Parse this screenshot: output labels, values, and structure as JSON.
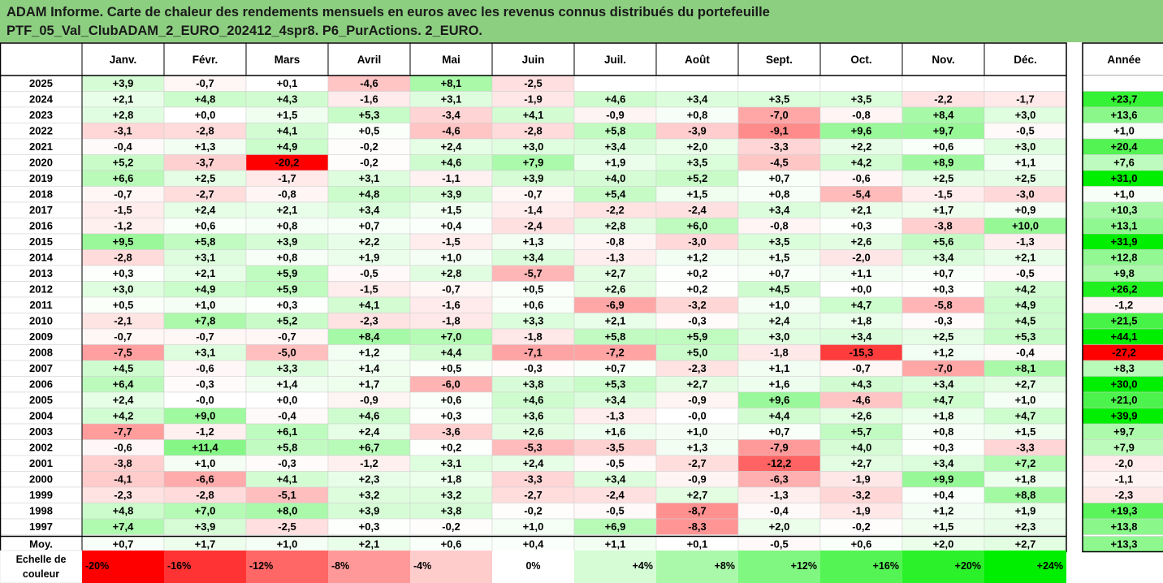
{
  "title": {
    "line1": "ADAM Informe. Carte de chaleur des rendements mensuels en euros avec les revenus connus distribués du portefeuille",
    "line2": "PTF_05_Val_ClubADAM_2_EURO_202412_4spr8. P6_PurActions. 2_EURO."
  },
  "chart_data": {
    "type": "heatmap",
    "columns": [
      "Janv.",
      "Févr.",
      "Mars",
      "Avril",
      "Mai",
      "Juin",
      "Juil.",
      "Août",
      "Sept.",
      "Oct.",
      "Nov.",
      "Déc."
    ],
    "year_column_label": "Année",
    "rows": [
      {
        "year": "2025",
        "values": [
          "+3,9",
          "-0,7",
          "+0,1",
          "-4,6",
          "+8,1",
          "-2,5",
          "",
          "",
          "",
          "",
          "",
          ""
        ],
        "annual": ""
      },
      {
        "year": "2024",
        "values": [
          "+2,1",
          "+4,8",
          "+4,3",
          "-1,6",
          "+3,1",
          "-1,9",
          "+4,6",
          "+3,4",
          "+3,5",
          "+3,5",
          "-2,2",
          "-1,7"
        ],
        "annual": "+23,7"
      },
      {
        "year": "2023",
        "values": [
          "+2,8",
          "+0,0",
          "+1,5",
          "+5,3",
          "-3,4",
          "+4,1",
          "-0,9",
          "+0,8",
          "-7,0",
          "-0,8",
          "+8,4",
          "+3,0"
        ],
        "annual": "+13,6"
      },
      {
        "year": "2022",
        "values": [
          "-3,1",
          "-2,8",
          "+4,1",
          "+0,5",
          "-4,6",
          "-2,8",
          "+5,8",
          "-3,9",
          "-9,1",
          "+9,6",
          "+9,7",
          "-0,5"
        ],
        "annual": "+1,0"
      },
      {
        "year": "2021",
        "values": [
          "-0,4",
          "+1,3",
          "+4,9",
          "-0,2",
          "+2,4",
          "+3,0",
          "+3,4",
          "+2,0",
          "-3,3",
          "+2,2",
          "+0,6",
          "+3,0"
        ],
        "annual": "+20,4"
      },
      {
        "year": "2020",
        "values": [
          "+5,2",
          "-3,7",
          "-20,2",
          "-0,2",
          "+4,6",
          "+7,9",
          "+1,9",
          "+3,5",
          "-4,5",
          "+4,2",
          "+8,9",
          "+1,1"
        ],
        "annual": "+7,6"
      },
      {
        "year": "2019",
        "values": [
          "+6,6",
          "+2,5",
          "-1,7",
          "+3,1",
          "-1,1",
          "+3,9",
          "+4,0",
          "+5,2",
          "+0,7",
          "-0,6",
          "+2,5",
          "+2,5"
        ],
        "annual": "+31,0"
      },
      {
        "year": "2018",
        "values": [
          "-0,7",
          "-2,7",
          "-0,8",
          "+4,8",
          "+3,9",
          "-0,7",
          "+5,4",
          "+1,5",
          "+0,8",
          "-5,4",
          "-1,5",
          "-3,0"
        ],
        "annual": "+1,0"
      },
      {
        "year": "2017",
        "values": [
          "-1,5",
          "+2,4",
          "+2,1",
          "+3,4",
          "+1,5",
          "-1,4",
          "-2,2",
          "-2,4",
          "+3,4",
          "+2,1",
          "+1,7",
          "+0,9"
        ],
        "annual": "+10,3"
      },
      {
        "year": "2016",
        "values": [
          "-1,2",
          "+0,6",
          "+0,8",
          "+0,7",
          "+0,4",
          "-2,4",
          "+2,8",
          "+6,0",
          "-0,8",
          "+0,3",
          "-3,8",
          "+10,0"
        ],
        "annual": "+13,1"
      },
      {
        "year": "2015",
        "values": [
          "+9,5",
          "+5,8",
          "+3,9",
          "+2,2",
          "-1,5",
          "+1,3",
          "-0,8",
          "-3,0",
          "+3,5",
          "+2,6",
          "+5,6",
          "-1,3"
        ],
        "annual": "+31,9"
      },
      {
        "year": "2014",
        "values": [
          "-2,8",
          "+3,1",
          "+0,8",
          "+1,9",
          "+1,0",
          "+3,4",
          "-1,3",
          "+1,2",
          "+1,5",
          "-2,0",
          "+3,4",
          "+2,1"
        ],
        "annual": "+12,8"
      },
      {
        "year": "2013",
        "values": [
          "+0,3",
          "+2,1",
          "+5,9",
          "-0,5",
          "+2,8",
          "-5,7",
          "+2,7",
          "+0,2",
          "+0,7",
          "+1,1",
          "+0,7",
          "-0,5"
        ],
        "annual": "+9,8"
      },
      {
        "year": "2012",
        "values": [
          "+3,0",
          "+4,9",
          "+5,9",
          "-1,5",
          "-0,7",
          "+0,5",
          "+2,6",
          "+0,2",
          "+4,5",
          "+0,0",
          "+0,3",
          "+4,2"
        ],
        "annual": "+26,2"
      },
      {
        "year": "2011",
        "values": [
          "+0,5",
          "+1,0",
          "+0,3",
          "+4,1",
          "-1,6",
          "+0,6",
          "-6,9",
          "-3,2",
          "+1,0",
          "+4,7",
          "-5,8",
          "+4,9"
        ],
        "annual": "-1,2"
      },
      {
        "year": "2010",
        "values": [
          "-2,1",
          "+7,8",
          "+5,2",
          "-2,3",
          "-1,8",
          "+3,3",
          "+2,1",
          "-0,3",
          "+2,4",
          "+1,8",
          "-0,3",
          "+4,5"
        ],
        "annual": "+21,5"
      },
      {
        "year": "2009",
        "values": [
          "-0,7",
          "-0,7",
          "-0,7",
          "+8,4",
          "+7,0",
          "-1,8",
          "+5,8",
          "+5,9",
          "+3,0",
          "+3,4",
          "+2,5",
          "+5,3"
        ],
        "annual": "+44,1"
      },
      {
        "year": "2008",
        "values": [
          "-7,5",
          "+3,1",
          "-5,0",
          "+1,2",
          "+4,4",
          "-7,1",
          "-7,2",
          "+5,0",
          "-1,8",
          "-15,3",
          "+1,2",
          "-0,4"
        ],
        "annual": "-27,2"
      },
      {
        "year": "2007",
        "values": [
          "+4,5",
          "-0,6",
          "+3,3",
          "+1,4",
          "+0,5",
          "-0,3",
          "+0,7",
          "-2,3",
          "+1,1",
          "-0,7",
          "-7,0",
          "+8,1"
        ],
        "annual": "+8,3"
      },
      {
        "year": "2006",
        "values": [
          "+6,4",
          "-0,3",
          "+1,4",
          "+1,7",
          "-6,0",
          "+3,8",
          "+5,3",
          "+2,7",
          "+1,6",
          "+4,3",
          "+3,4",
          "+2,7"
        ],
        "annual": "+30,0"
      },
      {
        "year": "2005",
        "values": [
          "+2,4",
          "-0,0",
          "+0,0",
          "-0,9",
          "+0,6",
          "+4,6",
          "+3,4",
          "-0,9",
          "+9,6",
          "-4,6",
          "+4,7",
          "+1,0"
        ],
        "annual": "+21,0"
      },
      {
        "year": "2004",
        "values": [
          "+4,2",
          "+9,0",
          "-0,4",
          "+4,6",
          "+0,3",
          "+3,6",
          "-1,3",
          "-0,0",
          "+4,4",
          "+2,6",
          "+1,8",
          "+4,7"
        ],
        "annual": "+39,9"
      },
      {
        "year": "2003",
        "values": [
          "-7,7",
          "-1,2",
          "+6,1",
          "+2,4",
          "-3,6",
          "+2,6",
          "+1,6",
          "+1,0",
          "+0,7",
          "+5,7",
          "+0,8",
          "+1,5"
        ],
        "annual": "+9,7"
      },
      {
        "year": "2002",
        "values": [
          "-0,6",
          "+11,4",
          "+5,8",
          "+6,7",
          "+0,2",
          "-5,3",
          "-3,5",
          "+1,3",
          "-7,9",
          "+4,0",
          "+0,3",
          "-3,3"
        ],
        "annual": "+7,9"
      },
      {
        "year": "2001",
        "values": [
          "-3,8",
          "+1,0",
          "-0,3",
          "-1,2",
          "+3,1",
          "+2,4",
          "-0,5",
          "-2,7",
          "-12,2",
          "+2,7",
          "+3,4",
          "+7,2"
        ],
        "annual": "-2,0"
      },
      {
        "year": "2000",
        "values": [
          "-4,1",
          "-6,6",
          "+4,1",
          "+2,3",
          "+1,8",
          "-3,3",
          "+3,4",
          "-0,9",
          "-6,3",
          "-1,9",
          "+9,9",
          "+1,8"
        ],
        "annual": "-1,1"
      },
      {
        "year": "1999",
        "values": [
          "-2,3",
          "-2,8",
          "-5,1",
          "+3,2",
          "+3,2",
          "-2,7",
          "-2,4",
          "+2,7",
          "-1,3",
          "-3,2",
          "+0,4",
          "+8,8"
        ],
        "annual": "-2,3"
      },
      {
        "year": "1998",
        "values": [
          "+4,8",
          "+7,0",
          "+8,0",
          "+3,9",
          "+3,8",
          "-0,2",
          "-0,5",
          "-8,7",
          "-0,4",
          "-1,9",
          "+1,2",
          "+1,9"
        ],
        "annual": "+19,3"
      },
      {
        "year": "1997",
        "values": [
          "+7,4",
          "+3,9",
          "-2,5",
          "+0,3",
          "-0,2",
          "+1,0",
          "+6,9",
          "-8,3",
          "+2,0",
          "-0,2",
          "+1,5",
          "+2,3"
        ],
        "annual": "+13,8"
      }
    ],
    "average_row": {
      "label": "Moy.",
      "values": [
        "+0,7",
        "+1,7",
        "+1,0",
        "+2,1",
        "+0,6",
        "+0,4",
        "+1,1",
        "+0,1",
        "-0,5",
        "+0,6",
        "+2,0",
        "+2,7"
      ],
      "annual": "+13,3"
    },
    "color_scale": {
      "label_line1": "Echelle de",
      "label_line2": "couleur",
      "stops": [
        "-20%",
        "-16%",
        "-12%",
        "-8%",
        "-4%",
        "0%",
        "+4%",
        "+8%",
        "+12%",
        "+16%",
        "+20%",
        "+24%"
      ],
      "stop_values": [
        -20,
        -16,
        -12,
        -8,
        -4,
        0,
        4,
        8,
        12,
        16,
        20,
        24
      ]
    },
    "colors": {
      "negative_max": "#ff0000",
      "positive_max": "#00ee00",
      "neutral": "#ffffff",
      "title_background": "#8ccf80",
      "grid": "#000000"
    }
  }
}
